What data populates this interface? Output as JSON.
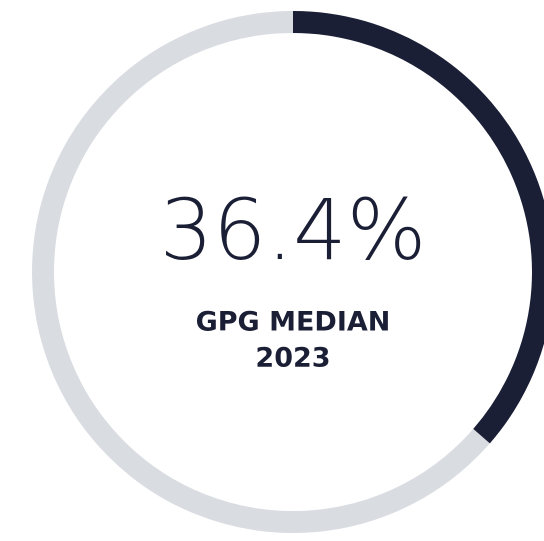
{
  "chart_data": {
    "type": "donut",
    "value": 36.4,
    "value_label": "36.4%",
    "label_lines": [
      "GPG MEDIAN",
      "2023"
    ],
    "color": "#1b1f36",
    "track_color": "#d9dce1"
  }
}
